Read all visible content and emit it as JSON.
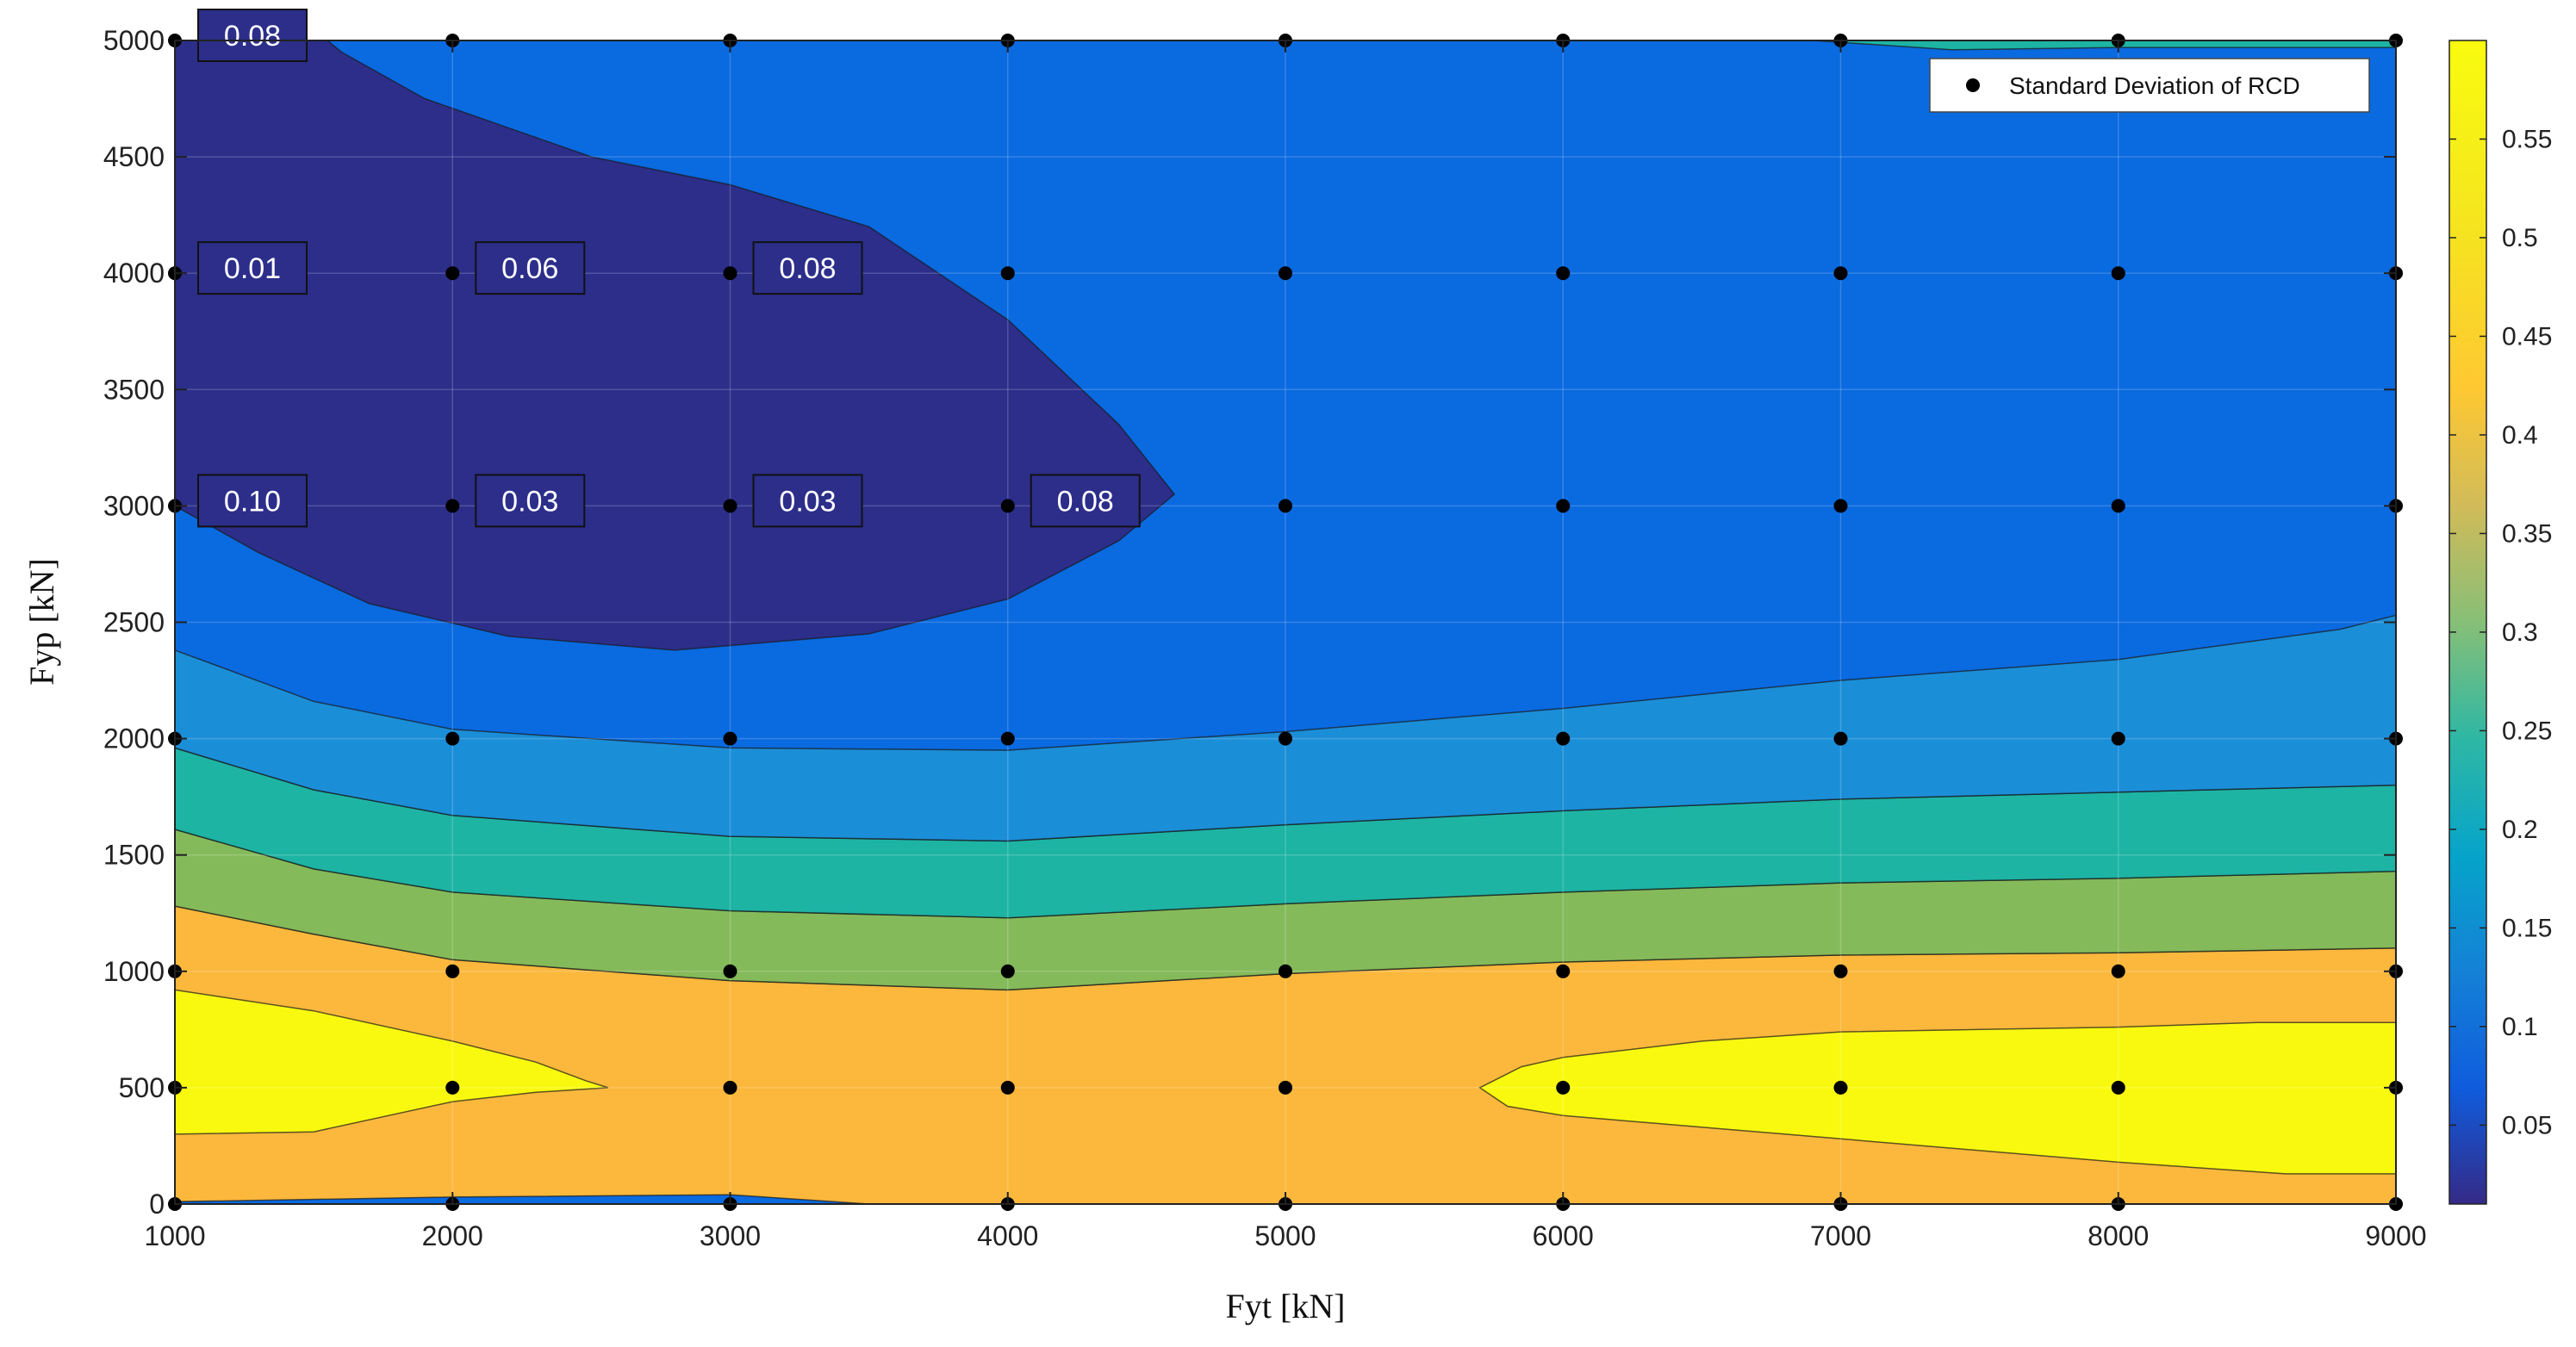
{
  "chart_data": {
    "type": "contour",
    "xlabel": "Fyt [kN]",
    "ylabel": "Fyp [kN]",
    "xlim": [
      1000,
      9000
    ],
    "ylim": [
      0,
      5000
    ],
    "x_ticks": [
      1000,
      2000,
      3000,
      4000,
      5000,
      6000,
      7000,
      8000,
      9000
    ],
    "y_ticks": [
      0,
      500,
      1000,
      1500,
      2000,
      2500,
      3000,
      3500,
      4000,
      4500,
      5000
    ],
    "grid": true,
    "legend": {
      "entries": [
        "Standard Deviation of RCD"
      ],
      "placement": "top-right"
    },
    "colorbar": {
      "range": [
        0.01,
        0.6
      ],
      "ticks": [
        0.05,
        0.1,
        0.15,
        0.2,
        0.25,
        0.3,
        0.35,
        0.4,
        0.45,
        0.5,
        0.55
      ],
      "tick_labels": [
        "0.05",
        "0.1",
        "0.15",
        "0.2",
        "0.25",
        "0.3",
        "0.35",
        "0.4",
        "0.45",
        "0.5",
        "0.55"
      ],
      "colormap": "parula"
    },
    "grid_points_x": [
      1000,
      2000,
      3000,
      4000,
      5000,
      6000,
      7000,
      8000,
      9000
    ],
    "grid_points_y": [
      0,
      500,
      1000,
      2000,
      3000,
      4000,
      5000
    ],
    "annotations": [
      {
        "x": 1000,
        "y": 5000,
        "label": "0.08"
      },
      {
        "x": 1000,
        "y": 4000,
        "label": "0.01"
      },
      {
        "x": 2000,
        "y": 4000,
        "label": "0.06"
      },
      {
        "x": 3000,
        "y": 4000,
        "label": "0.08"
      },
      {
        "x": 1000,
        "y": 3000,
        "label": "0.10"
      },
      {
        "x": 2000,
        "y": 3000,
        "label": "0.03"
      },
      {
        "x": 3000,
        "y": 3000,
        "label": "0.03"
      },
      {
        "x": 4000,
        "y": 3000,
        "label": "0.08"
      }
    ],
    "bands": [
      {
        "color": "#FBB83C",
        "upper": [
          [
            1000,
            1280
          ],
          [
            1500,
            1160
          ],
          [
            2000,
            1050
          ],
          [
            3000,
            960
          ],
          [
            4000,
            920
          ],
          [
            5000,
            990
          ],
          [
            6000,
            1040
          ],
          [
            7000,
            1070
          ],
          [
            8000,
            1080
          ],
          [
            9000,
            1100
          ]
        ],
        "lower": [
          [
            1000,
            10
          ],
          [
            2000,
            30
          ],
          [
            3000,
            40
          ],
          [
            3500,
            0
          ],
          [
            4000,
            0
          ],
          [
            5000,
            0
          ],
          [
            6000,
            0
          ],
          [
            7000,
            0
          ],
          [
            8000,
            0
          ],
          [
            9000,
            0
          ]
        ]
      },
      {
        "color": "#85BA5A",
        "upper": [
          [
            1000,
            1610
          ],
          [
            1500,
            1440
          ],
          [
            2000,
            1340
          ],
          [
            3000,
            1260
          ],
          [
            4000,
            1230
          ],
          [
            5000,
            1290
          ],
          [
            6000,
            1340
          ],
          [
            7000,
            1380
          ],
          [
            8000,
            1400
          ],
          [
            9000,
            1430
          ]
        ],
        "lower": [
          [
            1000,
            1280
          ],
          [
            1500,
            1160
          ],
          [
            2000,
            1050
          ],
          [
            3000,
            960
          ],
          [
            4000,
            920
          ],
          [
            5000,
            990
          ],
          [
            6000,
            1040
          ],
          [
            7000,
            1070
          ],
          [
            8000,
            1080
          ],
          [
            9000,
            1100
          ]
        ]
      },
      {
        "color": "#1DB4A4",
        "upper": [
          [
            1000,
            1960
          ],
          [
            1500,
            1780
          ],
          [
            2000,
            1670
          ],
          [
            3000,
            1580
          ],
          [
            4000,
            1560
          ],
          [
            5000,
            1630
          ],
          [
            6000,
            1690
          ],
          [
            7000,
            1740
          ],
          [
            8000,
            1770
          ],
          [
            9000,
            1800
          ]
        ],
        "lower": [
          [
            1000,
            1610
          ],
          [
            1500,
            1440
          ],
          [
            2000,
            1340
          ],
          [
            3000,
            1260
          ],
          [
            4000,
            1230
          ],
          [
            5000,
            1290
          ],
          [
            6000,
            1340
          ],
          [
            7000,
            1380
          ],
          [
            8000,
            1400
          ],
          [
            9000,
            1430
          ]
        ]
      },
      {
        "color": "#1B8ED8",
        "upper": [
          [
            1000,
            2380
          ],
          [
            1500,
            2160
          ],
          [
            2000,
            2040
          ],
          [
            3000,
            1960
          ],
          [
            4000,
            1950
          ],
          [
            5000,
            2030
          ],
          [
            6000,
            2130
          ],
          [
            7000,
            2250
          ],
          [
            8000,
            2340
          ],
          [
            8800,
            2470
          ],
          [
            9000,
            2530
          ]
        ],
        "lower": [
          [
            1000,
            1960
          ],
          [
            1500,
            1780
          ],
          [
            2000,
            1670
          ],
          [
            3000,
            1580
          ],
          [
            4000,
            1560
          ],
          [
            5000,
            1630
          ],
          [
            6000,
            1690
          ],
          [
            7000,
            1740
          ],
          [
            8000,
            1770
          ],
          [
            9000,
            1800
          ]
        ]
      }
    ],
    "regions": [
      {
        "color": "#F9F910",
        "points": [
          [
            1000,
            920
          ],
          [
            1500,
            830
          ],
          [
            2000,
            700
          ],
          [
            2300,
            610
          ],
          [
            2480,
            530
          ],
          [
            2560,
            500
          ],
          [
            2300,
            480
          ],
          [
            2000,
            440
          ],
          [
            1500,
            310
          ],
          [
            1000,
            300
          ]
        ]
      },
      {
        "color": "#F9F910",
        "points": [
          [
            5700,
            500
          ],
          [
            5850,
            590
          ],
          [
            6000,
            630
          ],
          [
            6500,
            700
          ],
          [
            7000,
            740
          ],
          [
            8000,
            760
          ],
          [
            8500,
            780
          ],
          [
            9000,
            780
          ],
          [
            9000,
            130
          ],
          [
            8600,
            130
          ],
          [
            8000,
            180
          ],
          [
            7000,
            280
          ],
          [
            6000,
            380
          ],
          [
            5800,
            420
          ]
        ]
      },
      {
        "color": "#2C2E8A",
        "points": [
          [
            1000,
            3000
          ],
          [
            1300,
            2800
          ],
          [
            1700,
            2580
          ],
          [
            2200,
            2440
          ],
          [
            2800,
            2380
          ],
          [
            3500,
            2450
          ],
          [
            4000,
            2600
          ],
          [
            4400,
            2850
          ],
          [
            4600,
            3050
          ],
          [
            4400,
            3350
          ],
          [
            4000,
            3800
          ],
          [
            3500,
            4200
          ],
          [
            3000,
            4380
          ],
          [
            2500,
            4500
          ],
          [
            1900,
            4750
          ],
          [
            1600,
            4950
          ],
          [
            1550,
            5000
          ],
          [
            1000,
            5000
          ]
        ]
      },
      {
        "color": "#1DB4A4",
        "points": [
          [
            6900,
            5000
          ],
          [
            7400,
            4960
          ],
          [
            8000,
            4970
          ],
          [
            9000,
            4970
          ],
          [
            9000,
            5000
          ]
        ]
      }
    ]
  }
}
